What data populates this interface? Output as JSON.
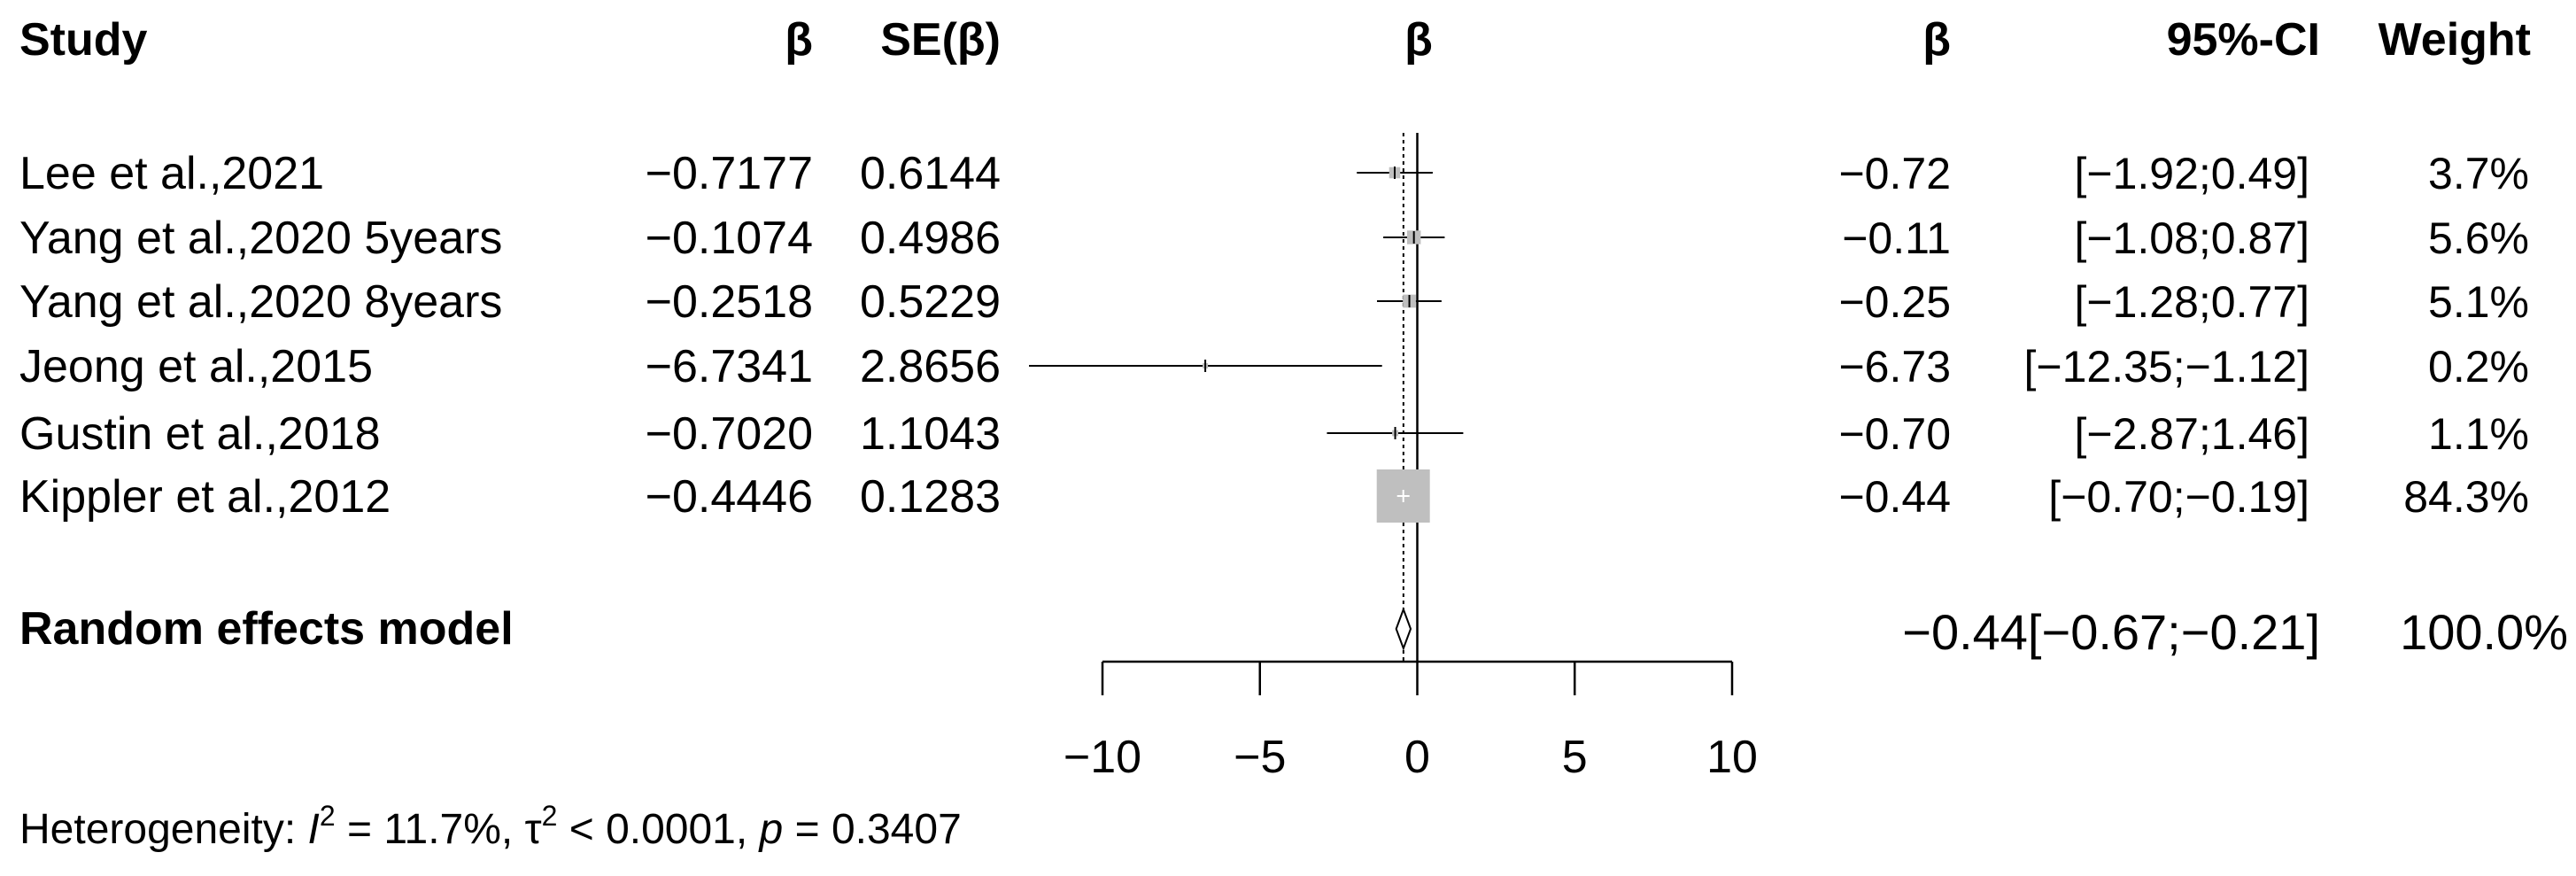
{
  "headers": {
    "study": "Study",
    "beta": "β",
    "se": "SE(β)",
    "plot": "β",
    "beta_right": "β",
    "ci": "95%-CI",
    "weight": "Weight"
  },
  "rows": [
    {
      "study": "Lee et al.,2021",
      "beta": "−0.7177",
      "se": "0.6144",
      "est": "−0.72",
      "ci": "[−1.92;0.49]",
      "weight": "3.7%"
    },
    {
      "study": "Yang et al.,2020 5years",
      "beta": "−0.1074",
      "se": "0.4986",
      "est": "−0.11",
      "ci": "[−1.08;0.87]",
      "weight": "5.6%"
    },
    {
      "study": "Yang et al.,2020 8years",
      "beta": "−0.2518",
      "se": "0.5229",
      "est": "−0.25",
      "ci": "[−1.28;0.77]",
      "weight": "5.1%"
    },
    {
      "study": "Jeong et al.,2015",
      "beta": "−6.7341",
      "se": "2.8656",
      "est": "−6.73",
      "ci": "[−12.35;−1.12]",
      "weight": "0.2%"
    },
    {
      "study": "Gustin et al.,2018",
      "beta": "−0.7020",
      "se": "1.1043",
      "est": "−0.70",
      "ci": "[−2.87;1.46]",
      "weight": "1.1%"
    },
    {
      "study": "Kippler et al.,2012",
      "beta": "−0.4446",
      "se": "0.1283",
      "est": "−0.44",
      "ci": "[−0.70;−0.19]",
      "weight": "84.3%"
    }
  ],
  "pooled": {
    "label": "Random effects model",
    "est_ci": "−0.44[−0.67;−0.21]",
    "weight": "100.0%"
  },
  "heterogeneity": {
    "prefix": "Heterogeneity: ",
    "i": "I",
    "sup1": "2",
    "mid1": " = 11.7%, ",
    "tau": "τ",
    "sup2": "2",
    "mid2": " < 0.0001, ",
    "p": "p",
    "end": " = 0.3407"
  },
  "chart_data": {
    "type": "forest",
    "xlim": [
      -10,
      10
    ],
    "ticks": [
      -10,
      -5,
      0,
      5,
      10
    ],
    "tick_labels": [
      "−10",
      "−5",
      "0",
      "5",
      "10"
    ],
    "null_line": 0,
    "studies": [
      {
        "name": "Lee et al.,2021",
        "beta": -0.7177,
        "lower": -1.92,
        "upper": 0.49,
        "weight": 3.7
      },
      {
        "name": "Yang et al.,2020 5years",
        "beta": -0.1074,
        "lower": -1.08,
        "upper": 0.87,
        "weight": 5.6
      },
      {
        "name": "Yang et al.,2020 8years",
        "beta": -0.2518,
        "lower": -1.28,
        "upper": 0.77,
        "weight": 5.1
      },
      {
        "name": "Jeong et al.,2015",
        "beta": -6.7341,
        "lower": -12.35,
        "upper": -1.12,
        "weight": 0.2
      },
      {
        "name": "Gustin et al.,2018",
        "beta": -0.702,
        "lower": -2.87,
        "upper": 1.46,
        "weight": 1.1
      },
      {
        "name": "Kippler et al.,2012",
        "beta": -0.4446,
        "lower": -0.7,
        "upper": -0.19,
        "weight": 84.3
      }
    ],
    "pooled": {
      "name": "Random effects model",
      "beta": -0.44,
      "lower": -0.67,
      "upper": -0.21,
      "weight": 100.0
    },
    "colors": {
      "line": "#000000",
      "square": "#bfbfbf",
      "ref_line": "#000000"
    }
  }
}
